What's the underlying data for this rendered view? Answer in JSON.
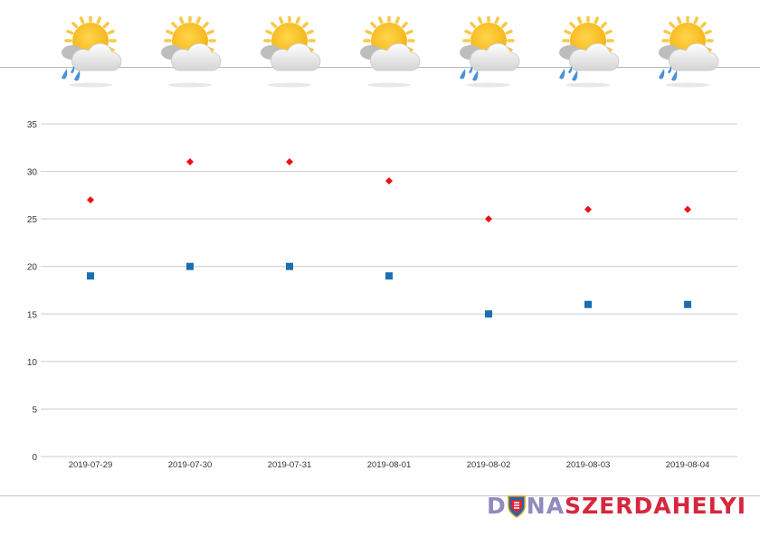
{
  "weather_icons": [
    {
      "date": "2019-07-29",
      "icon": "sun-cloud-rain-icon",
      "rain": true
    },
    {
      "date": "2019-07-30",
      "icon": "sun-cloud-icon",
      "rain": false
    },
    {
      "date": "2019-07-31",
      "icon": "sun-cloud-icon",
      "rain": false
    },
    {
      "date": "2019-08-01",
      "icon": "sun-cloud-icon",
      "rain": false
    },
    {
      "date": "2019-08-02",
      "icon": "sun-cloud-rain-icon",
      "rain": true
    },
    {
      "date": "2019-08-03",
      "icon": "sun-cloud-rain-icon",
      "rain": true
    },
    {
      "date": "2019-08-04",
      "icon": "sun-cloud-rain-icon",
      "rain": true
    }
  ],
  "chart_data": {
    "type": "scatter",
    "title": "",
    "xlabel": "",
    "ylabel": "",
    "x": [
      "2019-07-29",
      "2019-07-30",
      "2019-07-31",
      "2019-08-01",
      "2019-08-02",
      "2019-08-03",
      "2019-08-04"
    ],
    "series": [
      {
        "marker": "diamond",
        "color": "#ee1111",
        "values": [
          27,
          31,
          31,
          29,
          25,
          26,
          26
        ]
      },
      {
        "marker": "square",
        "color": "#1a6fb3",
        "values": [
          19,
          20,
          20,
          19,
          15,
          16,
          16
        ]
      }
    ],
    "ylim": [
      0,
      35
    ],
    "yticks": [
      0,
      5,
      10,
      15,
      20,
      25,
      30,
      35
    ],
    "grid": true,
    "legend": "none"
  },
  "logo": {
    "part1": "D",
    "part2": "NA",
    "part3": "SZERDAHELYI"
  },
  "colors": {
    "grid": "#cccccc",
    "axis_text": "#333333",
    "sun": "#f5b316",
    "cloud": "#e6e6e6",
    "rain": "#4a90d9"
  }
}
